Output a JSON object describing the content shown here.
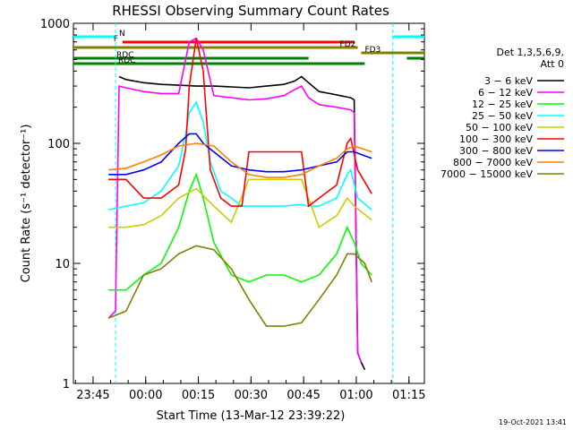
{
  "chart_data": {
    "type": "line",
    "title": "RHESSI Observing Summary Count Rates",
    "xlabel": "Start Time (13-Mar-12 23:39:22)",
    "ylabel": "Count Rate (s⁻¹ detector⁻¹)",
    "yscale": "log",
    "ylim": [
      1,
      1000
    ],
    "xlim_minutes_from_start": [
      0,
      100
    ],
    "x_ticks": [
      {
        "label": "23:45",
        "minute": 5.6
      },
      {
        "label": "00:00",
        "minute": 20.6
      },
      {
        "label": "00:15",
        "minute": 35.6
      },
      {
        "label": "00:30",
        "minute": 50.6
      },
      {
        "label": "00:45",
        "minute": 65.6
      },
      {
        "label": "01:00",
        "minute": 80.6
      },
      {
        "label": "01:15",
        "minute": 95.6
      }
    ],
    "y_ticks": [
      {
        "label": "1",
        "value": 1
      },
      {
        "label": "10",
        "value": 10
      },
      {
        "label": "100",
        "value": 100
      },
      {
        "label": "1000",
        "value": 1000
      }
    ],
    "legend": {
      "position": "right",
      "header": [
        "Det 1,3,5,6,9,",
        "Att 0"
      ],
      "entries": [
        {
          "label": "3 − 6 keV",
          "color": "#000000"
        },
        {
          "label": "6 − 12 keV",
          "color": "#ff00ff"
        },
        {
          "label": "12 − 25 keV",
          "color": "#00ff00"
        },
        {
          "label": "25 − 50 keV",
          "color": "#00ffff"
        },
        {
          "label": "50 − 100 keV",
          "color": "#cccc00"
        },
        {
          "label": "100 − 300 keV",
          "color": "#ff0000"
        },
        {
          "label": "300 − 800 keV",
          "color": "#0000ff"
        },
        {
          "label": "800 − 7000 keV",
          "color": "#ff8000"
        },
        {
          "label": "7000 − 15000 keV",
          "color": "#808000"
        }
      ]
    },
    "flag_bars": [
      {
        "label": "N",
        "color": "#00ffff",
        "segments": [
          [
            0,
            12
          ],
          [
            91,
            100
          ]
        ],
        "level": 0
      },
      {
        "label": "F",
        "color": "#ff0000",
        "segments": [
          [
            14,
            80
          ]
        ],
        "level": 1
      },
      {
        "label": "FD2",
        "color": "#808000",
        "segments": [
          [
            0,
            81
          ]
        ],
        "level": 2
      },
      {
        "label": "FD3",
        "color": "#808000",
        "segments": [
          [
            82,
            100
          ]
        ],
        "level": 3
      },
      {
        "label": "RDC",
        "color": "#008000",
        "segments": [
          [
            0,
            67
          ],
          [
            95,
            100
          ]
        ],
        "level": 4
      },
      {
        "label": "RDC",
        "color": "#008000",
        "segments": [
          [
            0,
            83
          ]
        ],
        "level": 5
      }
    ],
    "series": [
      {
        "name": "3 − 6 keV",
        "color": "#000000",
        "x": [
          13,
          15,
          20,
          25,
          30,
          35,
          40,
          45,
          50,
          55,
          60,
          63,
          65,
          67,
          70,
          73,
          76,
          79,
          80,
          81,
          82,
          83
        ],
        "y": [
          360,
          340,
          320,
          310,
          305,
          300,
          300,
          295,
          290,
          300,
          310,
          330,
          360,
          320,
          270,
          260,
          250,
          240,
          230,
          1.8,
          1.5,
          1.3
        ]
      },
      {
        "name": "6 − 12 keV",
        "color": "#ff00ff",
        "x": [
          10,
          12,
          13,
          15,
          20,
          25,
          30,
          33,
          35,
          37,
          40,
          45,
          50,
          55,
          60,
          63,
          65,
          67,
          70,
          75,
          79,
          80,
          81,
          82
        ],
        "y": [
          3.5,
          4,
          300,
          290,
          270,
          260,
          260,
          700,
          750,
          600,
          250,
          240,
          230,
          235,
          250,
          280,
          300,
          240,
          210,
          200,
          190,
          180,
          1.8,
          1.5
        ]
      },
      {
        "name": "12 − 25 keV",
        "color": "#00ff00",
        "x": [
          10,
          15,
          20,
          25,
          30,
          33,
          35,
          37,
          40,
          45,
          50,
          55,
          60,
          65,
          70,
          75,
          78,
          80,
          82,
          85
        ],
        "y": [
          6,
          6,
          8,
          10,
          20,
          40,
          55,
          35,
          15,
          8,
          7,
          8,
          8,
          7,
          8,
          12,
          20,
          15,
          10,
          8
        ]
      },
      {
        "name": "25 − 50 keV",
        "color": "#00ffff",
        "x": [
          10,
          15,
          20,
          25,
          30,
          32,
          33,
          35,
          37,
          39,
          42,
          45,
          48,
          50,
          55,
          60,
          65,
          67,
          70,
          75,
          78,
          79,
          81,
          85
        ],
        "y": [
          28,
          30,
          32,
          40,
          65,
          120,
          180,
          220,
          150,
          70,
          40,
          35,
          30,
          30,
          30,
          30,
          31,
          30,
          30,
          35,
          55,
          60,
          35,
          28
        ]
      },
      {
        "name": "50 − 100 keV",
        "color": "#cccc00",
        "x": [
          10,
          15,
          20,
          25,
          30,
          35,
          40,
          45,
          50,
          55,
          60,
          65,
          70,
          75,
          78,
          80,
          85
        ],
        "y": [
          20,
          20,
          21,
          25,
          35,
          42,
          30,
          22,
          50,
          50,
          50,
          50,
          20,
          25,
          35,
          30,
          23
        ]
      },
      {
        "name": "100 − 300 keV",
        "color": "#ff0000",
        "x": [
          10,
          15,
          20,
          25,
          30,
          32,
          33,
          35,
          37,
          39,
          42,
          45,
          48,
          50,
          55,
          60,
          65,
          67,
          70,
          75,
          78,
          79,
          81,
          85
        ],
        "y": [
          50,
          50,
          35,
          35,
          45,
          90,
          300,
          750,
          400,
          60,
          35,
          30,
          30,
          85,
          85,
          85,
          85,
          30,
          35,
          45,
          100,
          110,
          60,
          38
        ]
      },
      {
        "name": "300 − 800 keV",
        "color": "#0000ff",
        "x": [
          10,
          15,
          20,
          25,
          30,
          33,
          35,
          37,
          40,
          45,
          50,
          55,
          60,
          65,
          70,
          75,
          78,
          80,
          85
        ],
        "y": [
          55,
          55,
          60,
          70,
          100,
          120,
          120,
          100,
          85,
          65,
          60,
          58,
          58,
          60,
          65,
          70,
          85,
          85,
          75
        ]
      },
      {
        "name": "800 − 7000 keV",
        "color": "#ff8000",
        "x": [
          10,
          15,
          20,
          25,
          30,
          35,
          40,
          45,
          50,
          55,
          60,
          65,
          70,
          75,
          78,
          80,
          85
        ],
        "y": [
          60,
          62,
          70,
          80,
          95,
          100,
          95,
          70,
          55,
          52,
          52,
          55,
          65,
          75,
          90,
          95,
          85
        ]
      },
      {
        "name": "7000 − 15000 keV",
        "color": "#808000",
        "x": [
          10,
          15,
          20,
          25,
          30,
          35,
          40,
          45,
          50,
          55,
          60,
          65,
          70,
          75,
          78,
          80,
          83,
          85
        ],
        "y": [
          3.5,
          4,
          8,
          9,
          12,
          14,
          13,
          9,
          5,
          3,
          3,
          3.2,
          5,
          8,
          12,
          12,
          10,
          7
        ]
      }
    ],
    "grid": false
  },
  "footer_date": "19-Oct-2021 13:41"
}
